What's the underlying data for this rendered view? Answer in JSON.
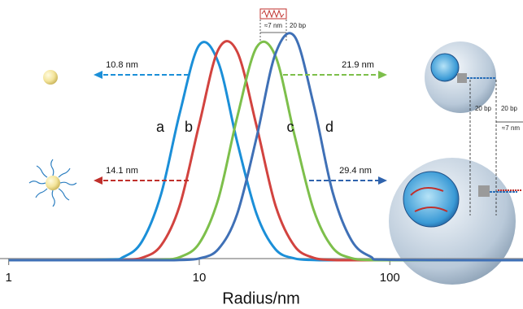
{
  "chart_data": {
    "type": "line",
    "xlabel": "Radius/nm",
    "xscale": "log",
    "xlim": [
      0.9,
      500
    ],
    "xticks": [
      1,
      10,
      100
    ],
    "ylim": [
      0,
      100
    ],
    "x": [
      1,
      3.2,
      4,
      5,
      6.3,
      7.9,
      10,
      12.6,
      15.8,
      20,
      25.1,
      31.6,
      39.8,
      50.1,
      63.1,
      79.4,
      100,
      500
    ],
    "series": [
      {
        "name": "a",
        "color": "#1b8fd8",
        "values": [
          0,
          0.2,
          1.5,
          8.5,
          30,
          67,
          98,
          90,
          54,
          21,
          5,
          0.8,
          0.1,
          0,
          0,
          0,
          0,
          0
        ]
      },
      {
        "name": "b",
        "color": "#d2433f",
        "values": [
          0,
          0,
          0.1,
          1.1,
          6.7,
          25,
          62,
          96,
          95,
          61,
          25,
          6.5,
          1.1,
          0.1,
          0,
          0,
          0,
          0
        ]
      },
      {
        "name": "c",
        "color": "#7dbf4b",
        "values": [
          0,
          0,
          0,
          0,
          0.2,
          1.4,
          7.7,
          28,
          65,
          97,
          93,
          57,
          23,
          5.7,
          0.9,
          0.1,
          0,
          0
        ]
      },
      {
        "name": "d",
        "color": "#3f70b6",
        "values": [
          0,
          0,
          0,
          0,
          0,
          0.1,
          0.8,
          5.1,
          21,
          56,
          94,
          102,
          71,
          31,
          8.9,
          1.6,
          0.2,
          0
        ]
      }
    ],
    "annotations": [
      {
        "text": "10.8 nm",
        "color": "#1b8fd8"
      },
      {
        "text": "14.1 nm",
        "color": "#c0302c"
      },
      {
        "text": "21.9 nm",
        "color": "#7dbf4b"
      },
      {
        "text": "29.4 nm",
        "color": "#2f63ad"
      }
    ],
    "dna_labels": {
      "width": "≈7 nm",
      "length": "20 bp",
      "sphere_length_1": "20 bp",
      "sphere_length_2": "20 bp",
      "sphere_width": "≈7 nm"
    }
  }
}
